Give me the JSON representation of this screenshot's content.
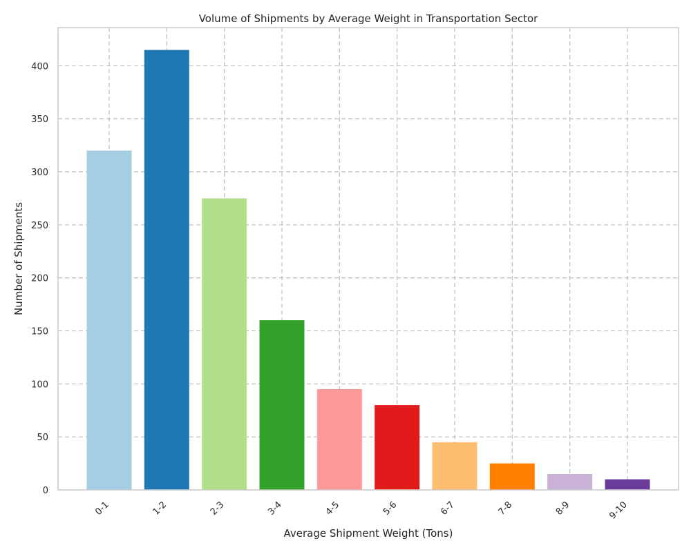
{
  "chart_data": {
    "type": "bar",
    "title": "Volume of Shipments by Average Weight in Transportation Sector",
    "xlabel": "Average Shipment Weight (Tons)",
    "ylabel": "Number of Shipments",
    "categories": [
      "0-1",
      "1-2",
      "2-3",
      "3-4",
      "4-5",
      "5-6",
      "6-7",
      "7-8",
      "8-9",
      "9-10"
    ],
    "values": [
      320,
      415,
      275,
      160,
      95,
      80,
      45,
      25,
      15,
      10
    ],
    "colors": [
      "#a6cee3",
      "#1f78b4",
      "#b2df8a",
      "#33a02c",
      "#fb9a99",
      "#e31a1c",
      "#fdbf6f",
      "#ff7f00",
      "#cab2d6",
      "#6a3d9a"
    ],
    "ylim": [
      0,
      436
    ],
    "yticks": [
      0,
      50,
      100,
      150,
      200,
      250,
      300,
      350,
      400
    ],
    "grid": true,
    "legend": "none"
  }
}
